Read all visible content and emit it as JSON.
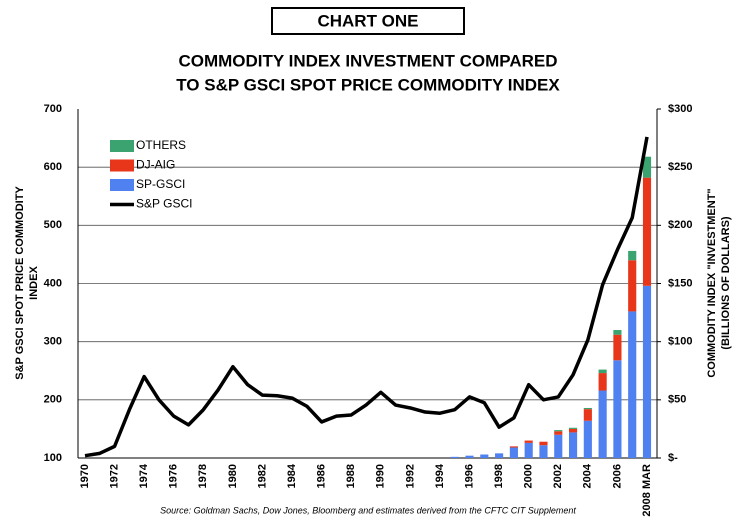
{
  "chart_data": {
    "type": "bar_line",
    "badge": "CHART ONE",
    "title": [
      "COMMODITY INDEX INVESTMENT COMPARED",
      "TO S&P GSCI SPOT PRICE COMMODITY INDEX"
    ],
    "y_label": [
      "S&P GSCI SPOT PRICE COMMODITY",
      "INDEX"
    ],
    "y2_label": [
      "COMMODITY INDEX \"INVESTMENT\"",
      "(BILLIONS OF DOLLARS)"
    ],
    "source": "Source: Goldman Sachs, Dow Jones, Bloomberg and estimates derived from the CFTC CIT Supplement",
    "categories": [
      "1970",
      null,
      "1972",
      null,
      "1974",
      null,
      "1976",
      null,
      "1978",
      null,
      "1980",
      null,
      "1982",
      null,
      "1984",
      null,
      "1986",
      null,
      "1988",
      null,
      "1990",
      null,
      "1992",
      null,
      "1994",
      null,
      "1996",
      null,
      "1998",
      null,
      "2000",
      null,
      "2002",
      null,
      "2004",
      null,
      "2006",
      null,
      "2008 MAR"
    ],
    "ylim": [
      100,
      700
    ],
    "yticks": [
      100,
      200,
      300,
      400,
      500,
      600,
      700
    ],
    "y2lim": [
      0,
      300
    ],
    "y2ticks": [
      {
        "value": 0,
        "label": "$-"
      },
      {
        "value": 50,
        "label": "$50"
      },
      {
        "value": 100,
        "label": "$100"
      },
      {
        "value": 150,
        "label": "$150"
      },
      {
        "value": 200,
        "label": "$200"
      },
      {
        "value": 250,
        "label": "$250"
      },
      {
        "value": 300,
        "label": "$300"
      }
    ],
    "grid": true,
    "legend": "top-left",
    "bar_series": [
      {
        "name": "SP-GSCI",
        "color": "#4f81f0",
        "axis": "y2",
        "values": [
          null,
          null,
          null,
          null,
          null,
          null,
          null,
          null,
          null,
          null,
          null,
          null,
          null,
          null,
          null,
          null,
          null,
          null,
          null,
          null,
          null,
          null,
          null,
          null,
          null,
          1,
          2,
          3,
          4,
          9,
          13,
          11,
          20,
          22,
          32,
          58,
          84,
          126,
          148
        ]
      },
      {
        "name": "DJ-AIG",
        "color": "#e8361a",
        "axis": "y2",
        "values": [
          null,
          null,
          null,
          null,
          null,
          null,
          null,
          null,
          null,
          null,
          null,
          null,
          null,
          null,
          null,
          null,
          null,
          null,
          null,
          null,
          null,
          null,
          null,
          null,
          null,
          null,
          null,
          null,
          null,
          1,
          2,
          3,
          3,
          3,
          10,
          15,
          22,
          44,
          93
        ]
      },
      {
        "name": "OTHERS",
        "color": "#3aa36f",
        "axis": "y2",
        "values": [
          null,
          null,
          null,
          null,
          null,
          null,
          null,
          null,
          null,
          null,
          null,
          null,
          null,
          null,
          null,
          null,
          null,
          null,
          null,
          null,
          null,
          null,
          null,
          null,
          null,
          null,
          null,
          null,
          null,
          null,
          null,
          null,
          1,
          1,
          1,
          3,
          4,
          8,
          18
        ]
      }
    ],
    "line_series": {
      "name": "S&P GSCI",
      "color": "#000000",
      "values": [
        104,
        108,
        120,
        183,
        240,
        200,
        172,
        157,
        183,
        217,
        257,
        226,
        208,
        207,
        203,
        189,
        162,
        172,
        174,
        191,
        213,
        191,
        186,
        179,
        177,
        183,
        205,
        195,
        153,
        169,
        226,
        200,
        205,
        243,
        303,
        398,
        458,
        513,
        652
      ]
    }
  }
}
